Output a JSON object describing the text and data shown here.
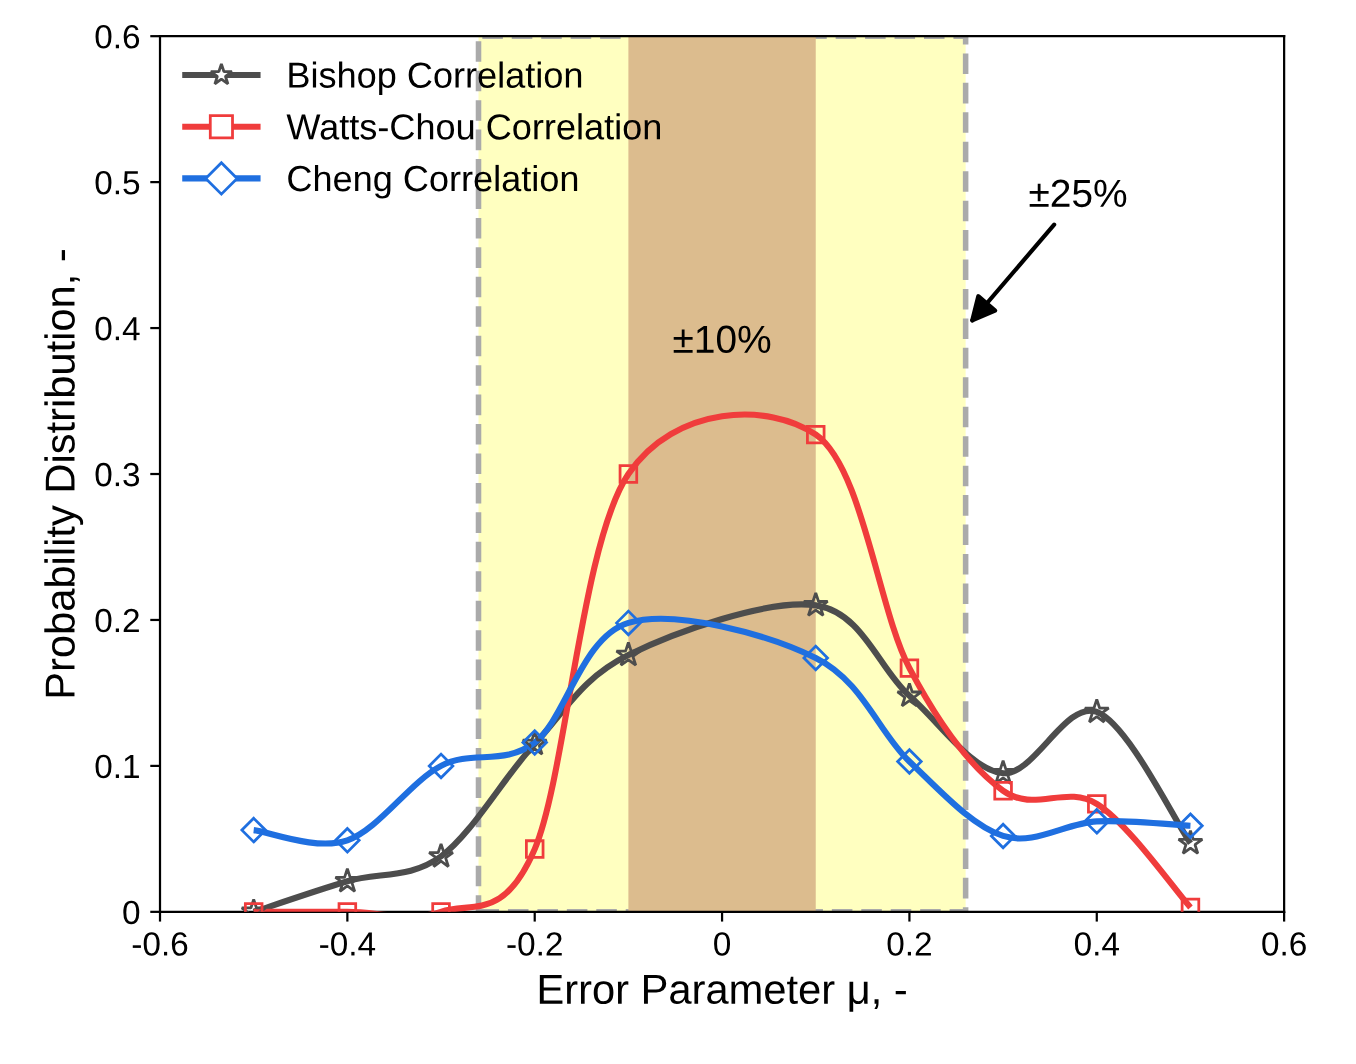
{
  "chart_data": {
    "type": "line",
    "xlabel": "Error Parameter μ, -",
    "ylabel": "Probability Distribution, -",
    "xlim": [
      -0.6,
      0.6
    ],
    "xticks": [
      -0.6,
      -0.4,
      -0.2,
      0,
      0.2,
      0.4,
      0.6
    ],
    "ylim": [
      0,
      0.6
    ],
    "yticks": [
      0,
      0.1,
      0.2,
      0.3,
      0.4,
      0.5,
      0.6
    ],
    "grid": false,
    "legend": "top left",
    "x": [
      -0.5,
      -0.4,
      -0.3,
      -0.2,
      -0.1,
      0.1,
      0.2,
      0.3,
      0.4,
      0.5
    ],
    "series": [
      {
        "name": "Bishop Correlation",
        "color": "#4d4d4d",
        "marker": "star",
        "values": [
          0.0,
          0.021,
          0.038,
          0.115,
          0.176,
          0.21,
          0.148,
          0.095,
          0.137,
          0.047
        ]
      },
      {
        "name": "Watts-Chou Correlation",
        "color": "#f03c3c",
        "marker": "square",
        "values": [
          0.0,
          0.0,
          0.0,
          0.043,
          0.3,
          0.327,
          0.167,
          0.083,
          0.074,
          0.003
        ]
      },
      {
        "name": "Cheng Correlation",
        "color": "#1f6fe0",
        "marker": "diamond",
        "values": [
          0.056,
          0.049,
          0.1,
          0.116,
          0.198,
          0.174,
          0.103,
          0.052,
          0.062,
          0.059
        ]
      }
    ],
    "bands": [
      {
        "axis": "x",
        "from": -0.26,
        "to": 0.26,
        "label": "±25%",
        "color": "#ffffc0"
      },
      {
        "axis": "x",
        "from": -0.1,
        "to": 0.1,
        "label": "±10%",
        "color": "#dcbc8e"
      }
    ]
  }
}
